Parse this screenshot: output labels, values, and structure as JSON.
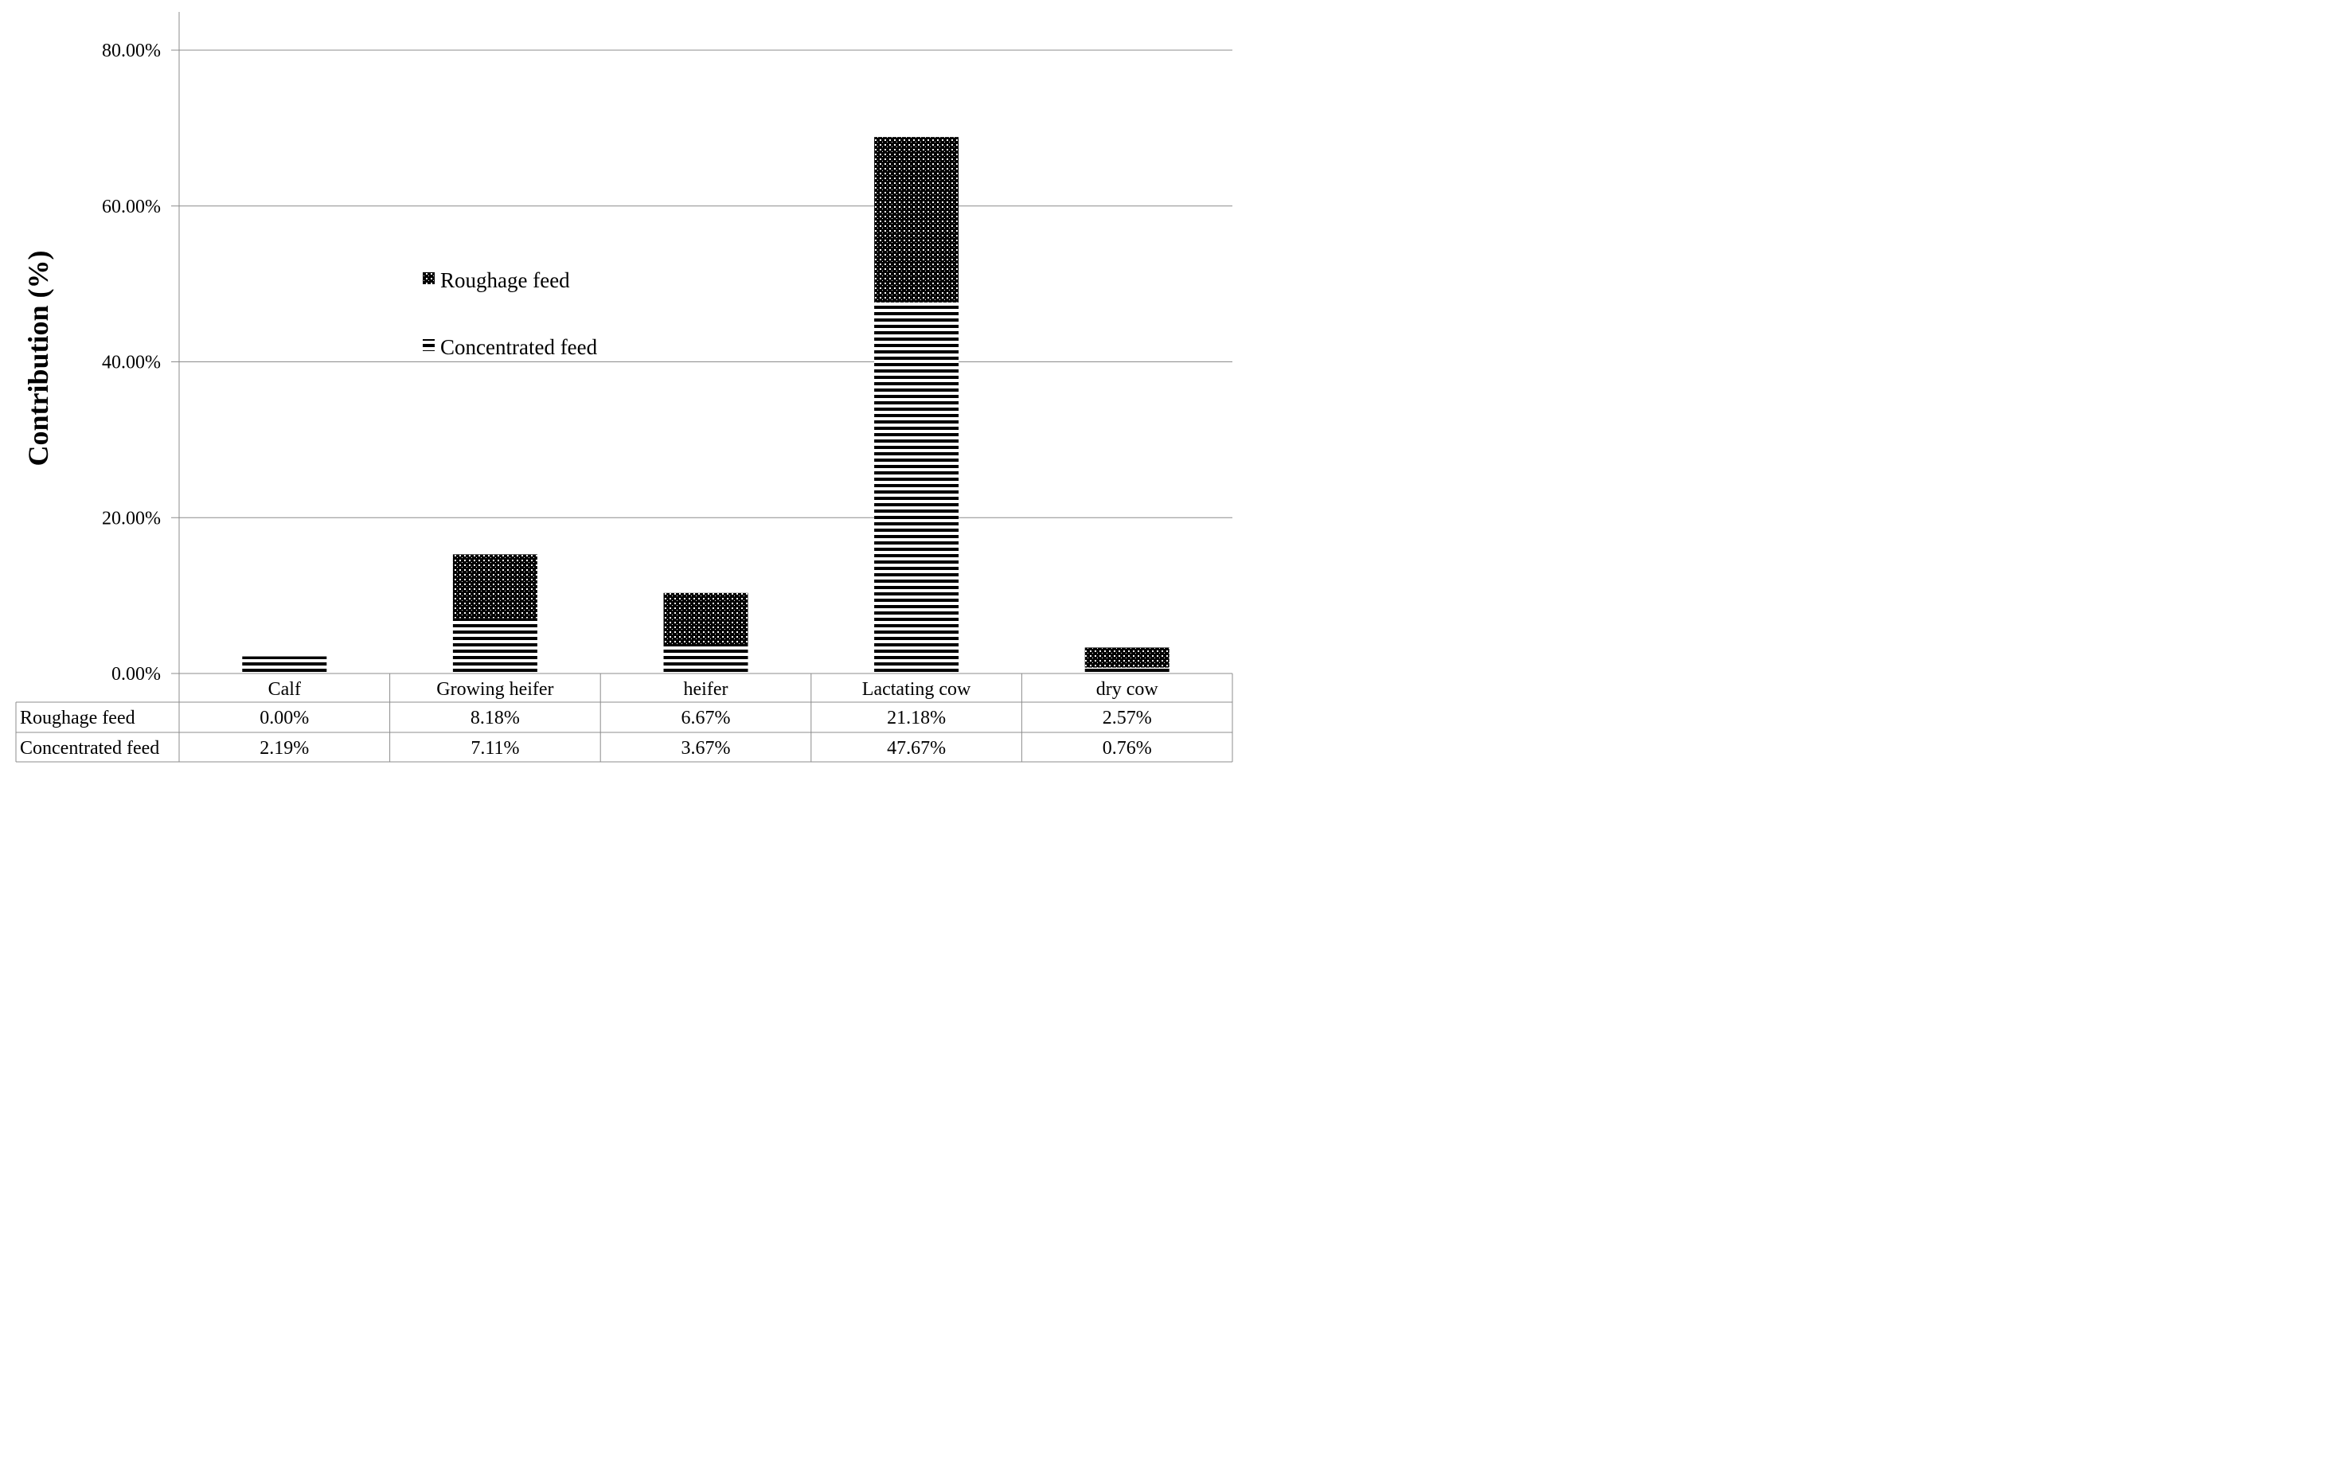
{
  "chart_data": {
    "type": "bar",
    "stacked": true,
    "title": "",
    "xlabel": "",
    "ylabel": "Contribution (%)",
    "ylim": [
      0,
      80
    ],
    "y_ticks": [
      "0.00%",
      "20.00%",
      "40.00%",
      "60.00%",
      "80.00%"
    ],
    "y_tick_values": [
      0,
      20,
      40,
      60,
      80
    ],
    "grid": true,
    "legend_position": "center-left",
    "categories": [
      "Calf",
      "Growing heifer",
      "heifer",
      "Lactating cow",
      "dry cow"
    ],
    "series": [
      {
        "name": "Concentrated feed",
        "pattern": "horizontal-lines",
        "values": [
          2.19,
          7.11,
          3.67,
          47.67,
          0.76
        ],
        "labels": [
          "2.19%",
          "7.11%",
          "3.67%",
          "47.67%",
          "0.76%"
        ]
      },
      {
        "name": "Roughage feed",
        "pattern": "crosshatch",
        "values": [
          0.0,
          8.18,
          6.67,
          21.18,
          2.57
        ],
        "labels": [
          "0.00%",
          "8.18%",
          "6.67%",
          "21.18%",
          "2.57%"
        ]
      }
    ],
    "legend_order": [
      "Roughage feed",
      "Concentrated feed"
    ],
    "data_table": {
      "row_labels": [
        "Roughage feed",
        "Concentrated feed"
      ]
    }
  }
}
